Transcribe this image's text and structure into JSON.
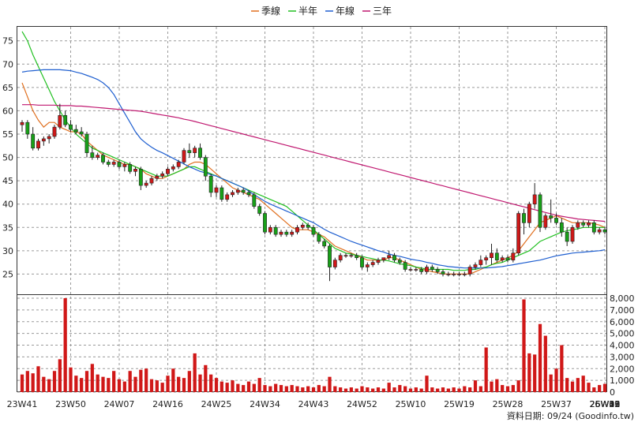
{
  "chart_data": {
    "type": "candlestick",
    "legend": [
      {
        "name": "季線",
        "color": "#e07020"
      },
      {
        "name": "半年",
        "color": "#22c022"
      },
      {
        "name": "年線",
        "color": "#1f5fd0"
      },
      {
        "name": "三年",
        "color": "#c01870"
      }
    ],
    "legend_position": "top-center",
    "grid": true,
    "y_price": {
      "ticks": [
        25,
        30,
        35,
        40,
        45,
        50,
        55,
        60,
        65,
        70,
        75
      ],
      "range": [
        20.5,
        78
      ]
    },
    "y_volume": {
      "ticks": [
        "8,000",
        "7,000",
        "6,000",
        "5,000",
        "4,000",
        "3,000",
        "2,000",
        "1,000",
        "0"
      ],
      "range": [
        0,
        8000
      ]
    },
    "x_labels": [
      "23W41",
      "23W50",
      "24W07",
      "24W16",
      "24W25",
      "24W34",
      "24W43",
      "24W52",
      "25W10",
      "25W19",
      "25W28",
      "25W37",
      "25W46",
      "26W03",
      "26W13",
      "26W22",
      "26W31",
      "26W39"
    ],
    "weeks_between_labels": 9,
    "candles": [
      [
        57,
        58,
        55.5,
        57.5
      ],
      [
        57.5,
        58,
        54,
        55
      ],
      [
        55,
        56.5,
        51.5,
        52
      ],
      [
        52,
        54,
        51.5,
        53.5
      ],
      [
        53.5,
        54.5,
        52.5,
        54
      ],
      [
        54,
        55,
        53,
        54.5
      ],
      [
        54.5,
        57,
        54,
        56.5
      ],
      [
        56.5,
        61.5,
        56,
        59
      ],
      [
        59,
        60,
        56.5,
        57
      ],
      [
        57,
        58,
        55.5,
        56
      ],
      [
        56,
        57,
        55,
        55.5
      ],
      [
        55.5,
        56.5,
        54.5,
        55
      ],
      [
        55,
        55.5,
        50,
        51
      ],
      [
        51,
        52.5,
        49.5,
        50
      ],
      [
        50,
        51,
        49.5,
        50.5
      ],
      [
        50.5,
        51,
        48.5,
        49
      ],
      [
        49,
        49.5,
        48,
        48.5
      ],
      [
        48.5,
        49.5,
        48,
        49
      ],
      [
        49,
        49.5,
        47.5,
        48
      ],
      [
        48,
        49,
        47,
        48.5
      ],
      [
        48.5,
        49,
        46.5,
        47
      ],
      [
        47,
        48,
        46,
        47.5
      ],
      [
        47.5,
        48,
        43,
        44
      ],
      [
        44,
        45,
        43.5,
        44.5
      ],
      [
        44.5,
        46,
        44,
        45.5
      ],
      [
        45.5,
        46.5,
        45,
        46
      ],
      [
        46,
        47,
        45.5,
        46.5
      ],
      [
        46.5,
        48,
        46,
        47.5
      ],
      [
        47.5,
        48.5,
        47,
        48
      ],
      [
        48,
        49.5,
        47.5,
        49
      ],
      [
        49,
        52,
        48.5,
        51.5
      ],
      [
        51.5,
        53,
        50,
        51
      ],
      [
        51,
        52.5,
        50,
        52
      ],
      [
        52,
        53,
        49.5,
        50
      ],
      [
        50,
        50.5,
        45,
        46
      ],
      [
        46,
        46.5,
        41.5,
        42.5
      ],
      [
        42.5,
        44,
        41.5,
        43.5
      ],
      [
        43.5,
        44,
        40.5,
        41
      ],
      [
        41,
        42.5,
        40.5,
        42
      ],
      [
        42,
        43,
        41.5,
        42.5
      ],
      [
        42.5,
        43.5,
        42,
        43
      ],
      [
        43,
        43.5,
        42,
        42.5
      ],
      [
        42.5,
        43,
        41.5,
        42
      ],
      [
        42,
        42.5,
        39,
        39.5
      ],
      [
        39.5,
        40,
        37.5,
        38
      ],
      [
        38,
        38.5,
        33.5,
        34
      ],
      [
        34,
        35.5,
        33.5,
        35
      ],
      [
        35,
        35.5,
        33,
        33.5
      ],
      [
        33.5,
        34.5,
        33,
        34
      ],
      [
        34,
        34.5,
        33,
        33.5
      ],
      [
        33.5,
        34.5,
        33,
        34
      ],
      [
        34,
        35.5,
        33.5,
        35
      ],
      [
        35,
        36,
        34.5,
        35.5
      ],
      [
        35.5,
        36,
        34.5,
        35
      ],
      [
        35,
        35.5,
        33,
        33.5
      ],
      [
        33.5,
        34,
        31.5,
        32
      ],
      [
        32,
        32.5,
        30.5,
        31
      ],
      [
        31,
        31.5,
        23.5,
        26.5
      ],
      [
        26.5,
        28.5,
        26,
        28
      ],
      [
        28,
        29.5,
        27.5,
        29
      ],
      [
        29,
        29.5,
        28.5,
        29
      ],
      [
        29,
        29.5,
        28.5,
        29
      ],
      [
        29,
        29.5,
        28,
        28.5
      ],
      [
        28.5,
        29,
        26,
        26.5
      ],
      [
        26.5,
        27.5,
        25.5,
        27
      ],
      [
        27,
        28,
        26.5,
        27.5
      ],
      [
        27.5,
        28.5,
        27,
        28
      ],
      [
        28,
        28.5,
        27.5,
        28.5
      ],
      [
        28.5,
        30,
        28,
        29
      ],
      [
        29,
        29.5,
        27.5,
        28
      ],
      [
        28,
        28.5,
        27,
        27.5
      ],
      [
        27.5,
        28,
        25.5,
        26
      ],
      [
        26,
        26.5,
        25.5,
        26
      ],
      [
        26,
        26.5,
        25.5,
        26
      ],
      [
        26,
        26.5,
        25,
        25.5
      ],
      [
        25.5,
        27,
        25,
        26.5
      ],
      [
        26.5,
        27,
        25.5,
        26
      ],
      [
        26,
        26.5,
        25,
        25.5
      ],
      [
        25.5,
        26,
        24.5,
        25
      ],
      [
        25,
        25.5,
        24.5,
        25
      ],
      [
        25,
        25.5,
        24.5,
        25
      ],
      [
        25,
        25.5,
        24.5,
        25
      ],
      [
        25,
        25.5,
        24.5,
        25
      ],
      [
        25,
        27,
        24.5,
        26.5
      ],
      [
        26.5,
        27.5,
        26,
        27
      ],
      [
        27,
        29,
        26.5,
        28
      ],
      [
        28,
        29,
        27,
        28.5
      ],
      [
        28.5,
        31.5,
        27,
        29.5
      ],
      [
        29.5,
        30.5,
        27.5,
        28
      ],
      [
        28,
        29,
        27.5,
        28.5
      ],
      [
        28.5,
        29,
        27.5,
        28
      ],
      [
        28,
        30.5,
        27.5,
        29.5
      ],
      [
        29.5,
        38.5,
        29,
        38
      ],
      [
        38,
        39,
        33.5,
        36
      ],
      [
        36,
        40.5,
        35,
        40
      ],
      [
        40,
        44.5,
        39,
        42
      ],
      [
        42,
        42.5,
        34,
        35
      ],
      [
        35,
        38,
        34.5,
        37.5
      ],
      [
        37.5,
        41,
        36,
        37
      ],
      [
        37,
        38,
        35.5,
        36
      ],
      [
        36,
        37,
        33,
        34
      ],
      [
        34,
        35,
        31,
        32
      ],
      [
        32,
        35.5,
        31.5,
        35
      ],
      [
        35,
        36.5,
        34.5,
        36
      ],
      [
        36,
        36.5,
        35,
        35.5
      ],
      [
        35.5,
        36.5,
        35,
        36
      ],
      [
        36,
        36.5,
        33.5,
        34
      ],
      [
        34,
        35,
        33.5,
        34.5
      ],
      [
        34.5,
        35,
        33.5,
        34
      ]
    ],
    "volumes": [
      1500,
      1800,
      1600,
      2200,
      1300,
      1100,
      1800,
      2800,
      8000,
      2100,
      1400,
      1200,
      1800,
      2400,
      1500,
      1300,
      1200,
      1800,
      1100,
      900,
      1800,
      1300,
      1900,
      2000,
      1100,
      1000,
      800,
      1400,
      2000,
      1300,
      1200,
      1800,
      3300,
      1500,
      2300,
      1500,
      1200,
      900,
      800,
      1000,
      700,
      600,
      900,
      700,
      1200,
      600,
      500,
      700,
      600,
      500,
      600,
      500,
      400,
      500,
      400,
      600,
      500,
      1300,
      500,
      400,
      300,
      400,
      300,
      500,
      400,
      300,
      400,
      300,
      800,
      400,
      600,
      500,
      300,
      400,
      300,
      1400,
      400,
      300,
      400,
      300,
      400,
      300,
      500,
      400,
      1000,
      500,
      3800,
      900,
      1100,
      600,
      500,
      600,
      1000,
      7900,
      3300,
      3200,
      5800,
      4800,
      1500,
      2000,
      4000,
      1200,
      900,
      1200,
      1400,
      800,
      400,
      600,
      700
    ],
    "moving_averages": {
      "季線": [
        66,
        63,
        60,
        58,
        56.5,
        57.5,
        57.5,
        56.5,
        56,
        55.5,
        55.5,
        55,
        53.5,
        52.5,
        51.5,
        50.5,
        50,
        49.5,
        49,
        48.5,
        48.5,
        48,
        47.5,
        46.5,
        46,
        45.5,
        45.5,
        46,
        46.5,
        47,
        47.5,
        48.5,
        49,
        49,
        48.5,
        47.5,
        46.5,
        45.5,
        44.5,
        43.5,
        43,
        42.5,
        42,
        41.5,
        41,
        40,
        39,
        38,
        37,
        36,
        35,
        34.5,
        34.5,
        34.5,
        34,
        33.5,
        33,
        32,
        31,
        30.5,
        30,
        29.5,
        29,
        28.5,
        28,
        28,
        28,
        28,
        28.5,
        28.5,
        28,
        27.5,
        27,
        26.5,
        26,
        25.8,
        25.5,
        25.3,
        25,
        25,
        25,
        25,
        25,
        25,
        25.5,
        26,
        26.5,
        27,
        27.5,
        28,
        28.5,
        29,
        30,
        31.5,
        33,
        34.5,
        36,
        36.5,
        37,
        37.5,
        37,
        36.5,
        36,
        36,
        36,
        36,
        35.8,
        35.5,
        35
      ],
      "半年": [
        77,
        75,
        72,
        69.5,
        67,
        64.5,
        62,
        60,
        58,
        56.5,
        55,
        54,
        53,
        52,
        51.5,
        51,
        50.5,
        50,
        49.5,
        49,
        48.5,
        48,
        47.5,
        47,
        46.5,
        46,
        46,
        46,
        46.5,
        47,
        47.5,
        48,
        48,
        47.5,
        47,
        46.5,
        46,
        45.5,
        45,
        44.5,
        44,
        43.5,
        43,
        42.5,
        42,
        41.5,
        41,
        40.5,
        40,
        39.5,
        38.5,
        37.5,
        36.5,
        35.5,
        34.5,
        33.5,
        32.5,
        31.5,
        30.5,
        30,
        29.5,
        29.3,
        29,
        28.8,
        28.5,
        28.3,
        28,
        28,
        27.8,
        27.5,
        27.2,
        27,
        26.8,
        26.5,
        26.3,
        26,
        26,
        26,
        26,
        26,
        25.8,
        25.8,
        25.8,
        26,
        26,
        26.3,
        26.5,
        27,
        27.3,
        27.5,
        28,
        28.5,
        29,
        29.5,
        30,
        31,
        32,
        32.5,
        33,
        33.5,
        34,
        34.3,
        34.5,
        34.7,
        35,
        35,
        35,
        35,
        35
      ],
      "年線": [
        68.3,
        68.5,
        68.6,
        68.7,
        68.8,
        68.8,
        68.8,
        68.8,
        68.7,
        68.6,
        68.3,
        68,
        67.6,
        67.2,
        66.7,
        66,
        65,
        63.5,
        61.5,
        59.5,
        57.5,
        55.5,
        54,
        53,
        52.2,
        51.5,
        51,
        50.4,
        49.8,
        49.2,
        48.6,
        48,
        47.5,
        47,
        46.7,
        46.3,
        46,
        45.5,
        45,
        44.5,
        44,
        43.5,
        42.8,
        42,
        41.3,
        40.6,
        40,
        39.5,
        39,
        38.5,
        38,
        37.5,
        37,
        36.5,
        36,
        35.3,
        34.6,
        34,
        33.5,
        33,
        32.5,
        32,
        31.6,
        31.2,
        30.8,
        30.4,
        30,
        29.7,
        29.3,
        29,
        28.8,
        28.5,
        28.2,
        28,
        27.8,
        27.5,
        27.3,
        27,
        26.8,
        26.6,
        26.5,
        26.4,
        26.3,
        26.3,
        26.3,
        26.3,
        26.3,
        26.4,
        26.5,
        26.6,
        26.8,
        27,
        27.2,
        27.4,
        27.6,
        27.8,
        28,
        28.3,
        28.6,
        28.9,
        29.1,
        29.3,
        29.5,
        29.6,
        29.7,
        29.8,
        29.9,
        30,
        30.2
      ],
      "三年": [
        61.3,
        61.3,
        61.3,
        61.2,
        61.2,
        61.2,
        61.2,
        61.1,
        61.1,
        61.1,
        61,
        61,
        60.9,
        60.8,
        60.7,
        60.6,
        60.5,
        60.4,
        60.3,
        60.2,
        60.1,
        60,
        59.9,
        59.7,
        59.5,
        59.3,
        59.1,
        58.9,
        58.7,
        58.5,
        58.2,
        58,
        57.7,
        57.4,
        57.1,
        56.8,
        56.5,
        56.2,
        55.9,
        55.6,
        55.3,
        55,
        54.7,
        54.4,
        54.1,
        53.8,
        53.5,
        53.2,
        52.9,
        52.6,
        52.3,
        52,
        51.7,
        51.4,
        51.1,
        50.8,
        50.5,
        50.2,
        49.9,
        49.6,
        49.3,
        49,
        48.7,
        48.4,
        48.1,
        47.8,
        47.5,
        47.2,
        46.9,
        46.6,
        46.3,
        46,
        45.7,
        45.4,
        45.1,
        44.8,
        44.5,
        44.2,
        43.9,
        43.6,
        43.3,
        43,
        42.7,
        42.4,
        42.1,
        41.8,
        41.5,
        41.2,
        40.9,
        40.6,
        40.3,
        40,
        39.7,
        39.4,
        39.1,
        38.8,
        38.5,
        38.2,
        37.9,
        37.6,
        37.4,
        37.2,
        37,
        36.8,
        36.7,
        36.6,
        36.5,
        36.4,
        36.3
      ]
    }
  },
  "footer": {
    "source": "資料日期: 09/24  (Goodinfo.tw)"
  },
  "colors": {
    "up": "#d01818",
    "down": "#18a018",
    "volume": "#d01818",
    "grid": "#9a9a9a"
  }
}
